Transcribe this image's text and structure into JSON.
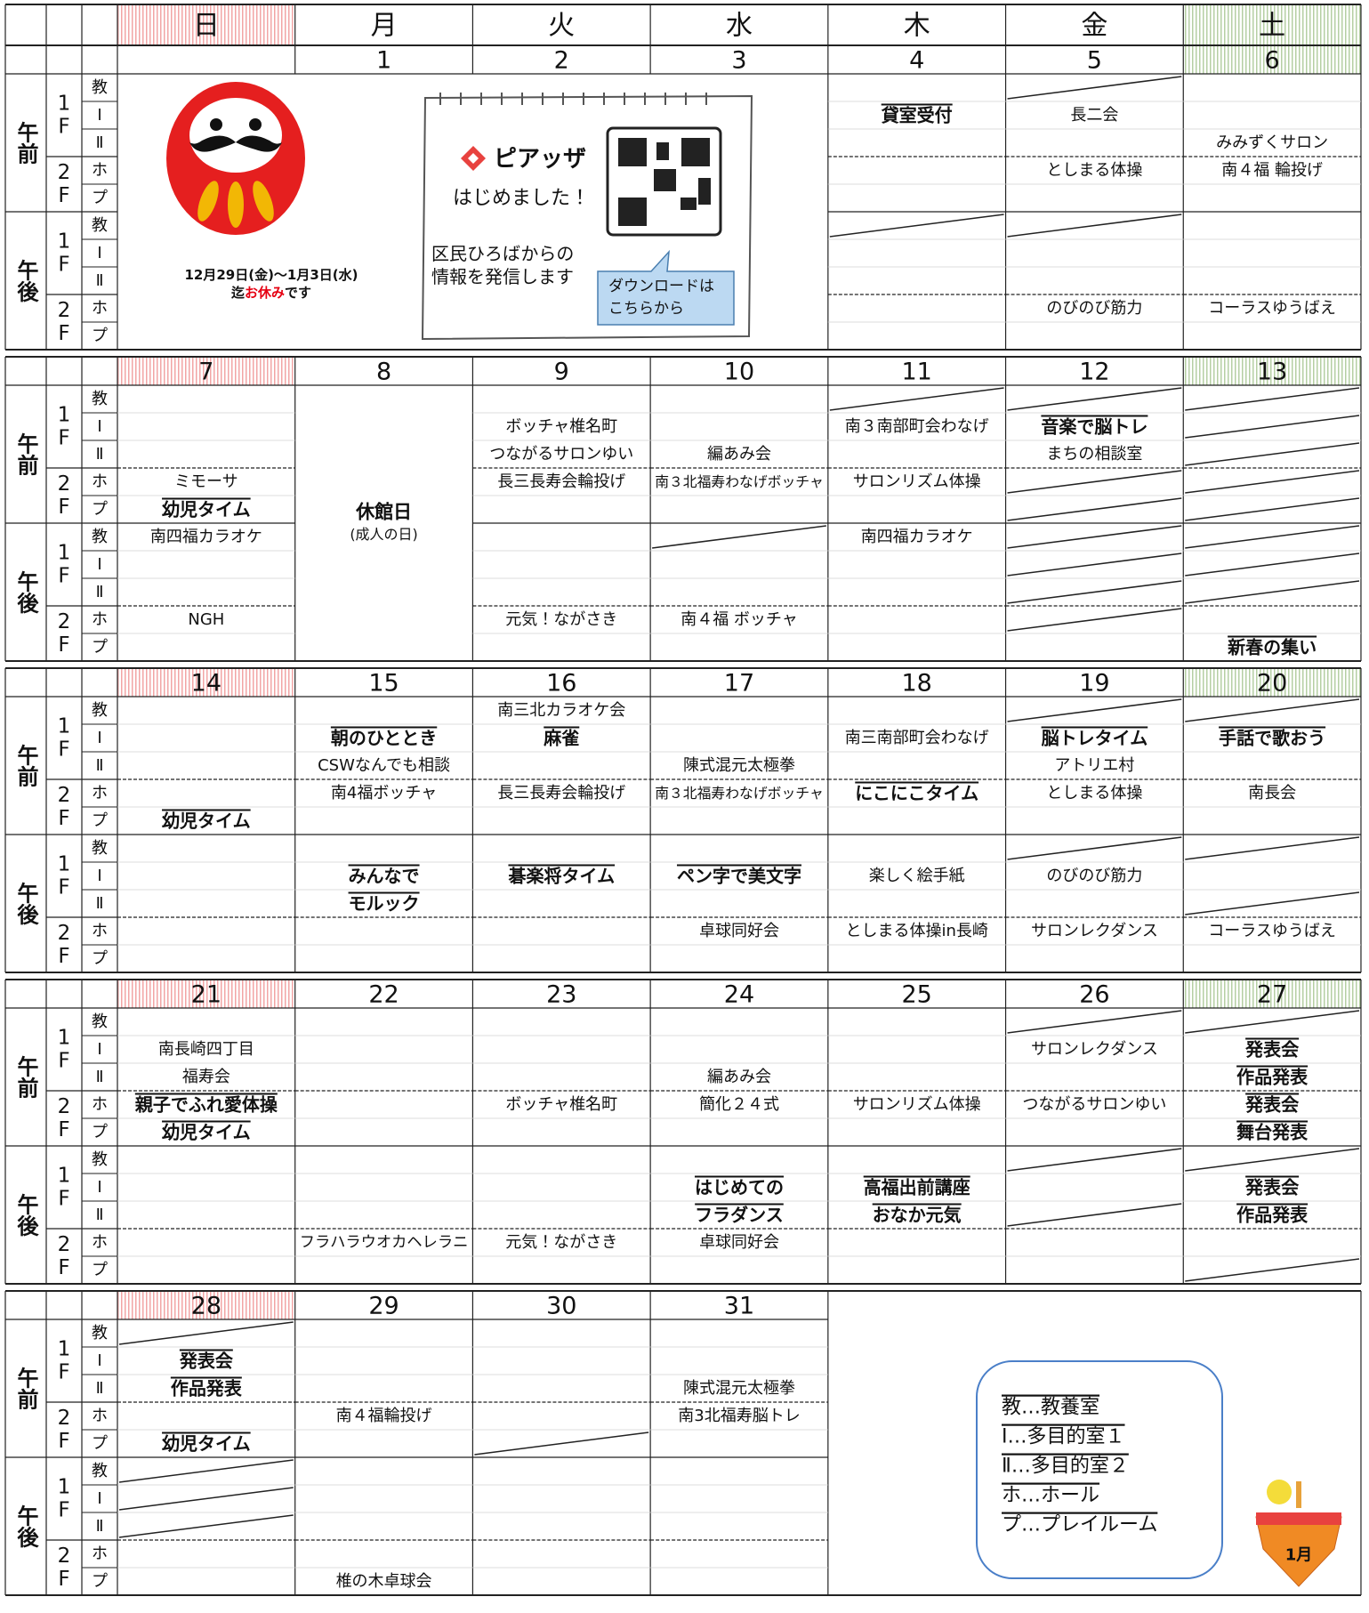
{
  "weekdays": [
    "日",
    "月",
    "火",
    "水",
    "木",
    "金",
    "土"
  ],
  "row_labels": {
    "halves": [
      "午前",
      "午後"
    ],
    "floors": [
      "1F",
      "2F"
    ],
    "rooms": [
      "教",
      "Ⅰ",
      "Ⅱ",
      "ホ",
      "プ"
    ]
  },
  "weeks": [
    {
      "dates": [
        null,
        1,
        2,
        3,
        4,
        5,
        6
      ],
      "notice": {
        "period": "12月29日(金)～1月3日(水)",
        "pre": "迄",
        "emph": "お休み",
        "post": "です"
      },
      "ad": {
        "brand": "ピアッザ",
        "headline": "はじめました！",
        "info": [
          "区民ひろばからの",
          "情報を発信します"
        ],
        "bubble": [
          "ダウンロードは",
          "こちらから"
        ]
      },
      "days": [
        {
          "slots": []
        },
        {
          "slots": []
        },
        {
          "slots": []
        },
        {
          "slots": []
        },
        {
          "slots": [
            null,
            {
              "lines": [
                "貸室受付"
              ],
              "emph": true
            },
            null,
            null,
            null,
            null,
            null,
            null,
            null,
            null
          ]
        },
        {
          "slots": [
            null,
            "長二会",
            null,
            "としまる体操",
            null,
            null,
            null,
            null,
            "のびのび筋力",
            null
          ]
        },
        {
          "slots": [
            null,
            null,
            "みみずくサロン",
            "南４福 輪投げ",
            null,
            null,
            null,
            null,
            "コーラスゆうばえ",
            null
          ]
        }
      ]
    },
    {
      "dates": [
        7,
        8,
        9,
        10,
        11,
        12,
        13
      ],
      "days": [
        {
          "slots": [
            null,
            null,
            null,
            "ミモーサ",
            {
              "lines": [
                "幼児タイム"
              ],
              "emph": true
            },
            "南四福カラオケ",
            null,
            null,
            "NGH",
            null
          ]
        },
        {
          "slots": [],
          "holiday": {
            "title": "休館日",
            "note": "(成人の日)"
          }
        },
        {
          "slots": [
            null,
            "ボッチャ椎名町",
            "つながるサロンゆい",
            "長三長寿会輪投げ",
            null,
            null,
            null,
            null,
            "元気！ながさき",
            null
          ]
        },
        {
          "slots": [
            null,
            null,
            "編あみ会",
            "南３北福寿わなげボッチャ",
            null,
            null,
            null,
            null,
            "南４福 ボッチャ",
            null
          ]
        },
        {
          "slots": [
            null,
            "南３南部町会わなげ",
            null,
            "サロンリズム体操",
            null,
            "南四福カラオケ",
            null,
            null,
            null,
            null
          ]
        },
        {
          "slots": [
            null,
            {
              "lines": [
                "音楽で脳トレ"
              ],
              "emph": true
            },
            "まちの相談室",
            null,
            null,
            null,
            null,
            null,
            null,
            null
          ]
        },
        {
          "slots": [
            null,
            null,
            null,
            null,
            null,
            null,
            null,
            null,
            null,
            {
              "lines": [
                "新春の集い"
              ],
              "emph": true
            }
          ]
        }
      ]
    },
    {
      "dates": [
        14,
        15,
        16,
        17,
        18,
        19,
        20
      ],
      "days": [
        {
          "slots": [
            null,
            null,
            null,
            null,
            {
              "lines": [
                "幼児タイム"
              ],
              "emph": true
            },
            null,
            null,
            null,
            null,
            null
          ]
        },
        {
          "slots": [
            null,
            {
              "lines": [
                "朝のひととき"
              ],
              "emph": true
            },
            "CSWなんでも相談",
            "南4福ボッチャ",
            null,
            null,
            {
              "lines": [
                "みんなで",
                "モルック"
              ],
              "emph": true
            },
            null,
            null,
            null
          ]
        },
        {
          "slots": [
            "南三北カラオケ会",
            {
              "lines": [
                "麻雀"
              ],
              "emph": true
            },
            null,
            "長三長寿会輪投げ",
            null,
            null,
            {
              "lines": [
                "碁楽将タイム"
              ],
              "emph": true
            },
            null,
            null,
            null
          ]
        },
        {
          "slots": [
            null,
            null,
            "陳式混元太極拳",
            "南３北福寿わなげボッチャ",
            null,
            null,
            {
              "lines": [
                "ペン字で美文字"
              ],
              "emph": true
            },
            null,
            "卓球同好会",
            null
          ]
        },
        {
          "slots": [
            null,
            "南三南部町会わなげ",
            null,
            {
              "lines": [
                "にこにこタイム"
              ],
              "emph": true
            },
            null,
            null,
            "楽しく絵手紙",
            null,
            "としまる体操in長崎",
            null
          ]
        },
        {
          "slots": [
            null,
            {
              "lines": [
                "脳トレタイム"
              ],
              "emph": true
            },
            "アトリエ村",
            "としまる体操",
            null,
            null,
            "のびのび筋力",
            null,
            "サロンレクダンス",
            null
          ]
        },
        {
          "slots": [
            null,
            {
              "lines": [
                "手話で歌おう"
              ],
              "emph": true
            },
            null,
            "南長会",
            null,
            null,
            null,
            null,
            "コーラスゆうばえ",
            null
          ]
        }
      ]
    },
    {
      "dates": [
        21,
        22,
        23,
        24,
        25,
        26,
        27
      ],
      "days": [
        {
          "slots": [
            null,
            "南長崎四丁目",
            "福寿会",
            {
              "lines": [
                "親子でふれ愛体操"
              ],
              "emph": true
            },
            {
              "lines": [
                "幼児タイム"
              ],
              "emph": true
            },
            null,
            null,
            null,
            null,
            null
          ]
        },
        {
          "slots": [
            null,
            null,
            null,
            null,
            null,
            null,
            null,
            null,
            "フラハラウオカヘレラニ",
            null
          ]
        },
        {
          "slots": [
            null,
            null,
            null,
            "ボッチャ椎名町",
            null,
            null,
            null,
            null,
            "元気！ながさき",
            null
          ]
        },
        {
          "slots": [
            null,
            null,
            "編あみ会",
            "簡化２４式",
            null,
            null,
            {
              "lines": [
                "はじめての",
                "フラダンス"
              ],
              "emph": true
            },
            null,
            "卓球同好会",
            null
          ]
        },
        {
          "slots": [
            null,
            null,
            null,
            "サロンリズム体操",
            null,
            null,
            {
              "lines": [
                "高福出前講座",
                "おなか元気"
              ],
              "emph": true
            },
            null,
            null,
            null
          ]
        },
        {
          "slots": [
            null,
            "サロンレクダンス",
            null,
            "つながるサロンゆい",
            null,
            null,
            null,
            null,
            null,
            null
          ]
        },
        {
          "slots": [
            null,
            {
              "lines": [
                "発表会",
                "作品発表"
              ],
              "emph": true
            },
            null,
            {
              "lines": [
                "発表会",
                "舞台発表"
              ],
              "emph": true
            },
            null,
            null,
            {
              "lines": [
                "発表会",
                "作品発表"
              ],
              "emph": true
            },
            null,
            null,
            null
          ]
        }
      ]
    },
    {
      "dates": [
        28,
        29,
        30,
        31,
        null,
        null,
        null
      ],
      "days": [
        {
          "slots": [
            null,
            {
              "lines": [
                "発表会",
                "作品発表"
              ],
              "emph": true
            },
            null,
            null,
            {
              "lines": [
                "幼児タイム"
              ],
              "emph": true
            },
            null,
            null,
            null,
            null,
            null
          ]
        },
        {
          "slots": [
            null,
            null,
            null,
            "南４福輪投げ",
            null,
            null,
            null,
            null,
            null,
            "椎の木卓球会"
          ]
        },
        {
          "slots": []
        },
        {
          "slots": [
            null,
            null,
            "陳式混元太極拳",
            "南3北福寿脳トレ",
            null,
            null,
            null,
            null,
            null,
            null
          ]
        },
        {
          "slots": []
        },
        {
          "slots": []
        },
        {
          "slots": []
        }
      ]
    }
  ],
  "legend": {
    "items": [
      "教…教養室",
      "Ⅰ…多目的室１",
      "Ⅱ…多目的室２",
      "ホ…ホール",
      "プ…プレイルーム"
    ],
    "icon_label": "1月"
  }
}
